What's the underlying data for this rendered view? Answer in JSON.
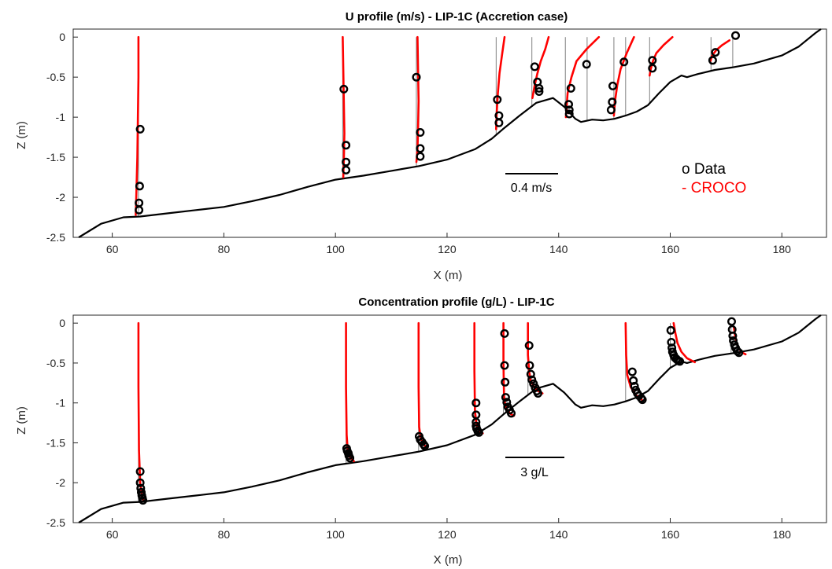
{
  "colors": {
    "data": "#000000",
    "model": "#ff0000",
    "bed": "#000000",
    "vertical_ref": "#808080",
    "axes": "#262626"
  },
  "legend": {
    "data_label": "o Data",
    "model_label": "- CROCO"
  },
  "chart_data": [
    {
      "type": "line",
      "title": "U profile (m/s) - LIP-1C (Accretion case)",
      "xlabel": "X (m)",
      "ylabel": "Z (m)",
      "xlim": [
        53,
        188
      ],
      "ylim": [
        -2.5,
        0.1
      ],
      "xticks": [
        60,
        80,
        100,
        120,
        140,
        160,
        180
      ],
      "yticks": [
        0,
        -0.5,
        -1,
        -1.5,
        -2,
        -2.5
      ],
      "ytick_labels": [
        "0",
        "-0.5",
        "-1",
        "-1.5",
        "-2",
        "-2.5"
      ],
      "grid": false,
      "scale_bar_label": "0.4 m/s",
      "scale_bar_value": 0.4,
      "bed_profile": {
        "x": [
          54,
          58,
          62,
          65,
          70,
          75,
          80,
          85,
          90,
          95,
          100,
          105,
          110,
          115,
          120,
          125,
          128,
          130,
          133,
          136,
          139,
          141,
          143,
          144,
          146,
          148,
          150,
          152,
          154,
          156,
          158,
          160,
          162,
          163,
          165,
          168,
          171,
          175,
          180,
          183,
          186,
          187
        ],
        "z": [
          -2.5,
          -2.33,
          -2.25,
          -2.24,
          -2.2,
          -2.16,
          -2.12,
          -2.05,
          -1.97,
          -1.87,
          -1.78,
          -1.73,
          -1.67,
          -1.61,
          -1.53,
          -1.4,
          -1.27,
          -1.15,
          -0.98,
          -0.82,
          -0.76,
          -0.87,
          -1.02,
          -1.06,
          -1.03,
          -1.04,
          -1.02,
          -0.98,
          -0.93,
          -0.85,
          -0.7,
          -0.56,
          -0.48,
          -0.5,
          -0.46,
          -0.41,
          -0.38,
          -0.33,
          -0.23,
          -0.12,
          0.05,
          0.1
        ]
      },
      "profiles": [
        {
          "x0": 64.7,
          "data_x": [
            65.0,
            64.9,
            64.8,
            64.8
          ],
          "data_z": [
            -1.15,
            -1.86,
            -2.07,
            -2.16
          ],
          "model_x": [
            64.7,
            64.7,
            64.6,
            64.5,
            64.3,
            64.2
          ],
          "model_z": [
            0.0,
            -0.5,
            -1.0,
            -1.5,
            -2.0,
            -2.22
          ]
        },
        {
          "x0": 101.3,
          "data_x": [
            101.5,
            101.9,
            101.9,
            101.9
          ],
          "data_z": [
            -0.65,
            -1.35,
            -1.56,
            -1.66
          ],
          "model_x": [
            101.3,
            101.4,
            101.5,
            101.6,
            101.5,
            101.4
          ],
          "model_z": [
            0.0,
            -0.4,
            -0.8,
            -1.2,
            -1.55,
            -1.75
          ]
        },
        {
          "x0": 114.5,
          "data_x": [
            114.5,
            115.2,
            115.2,
            115.2
          ],
          "data_z": [
            -0.5,
            -1.19,
            -1.39,
            -1.49
          ],
          "model_x": [
            114.7,
            114.8,
            114.9,
            114.8,
            114.7,
            114.5
          ],
          "model_z": [
            0.0,
            -0.4,
            -0.8,
            -1.15,
            -1.4,
            -1.56
          ]
        },
        {
          "x0": 128.8,
          "data_x": [
            129.0,
            129.3,
            129.3
          ],
          "data_z": [
            -0.78,
            -0.98,
            -1.07
          ],
          "model_x": [
            130.3,
            129.9,
            129.4,
            129.1,
            128.9,
            128.8
          ],
          "model_z": [
            0.0,
            -0.2,
            -0.45,
            -0.7,
            -0.95,
            -1.15
          ]
        },
        {
          "x0": 135.2,
          "data_x": [
            135.7,
            136.2,
            136.5,
            136.5
          ],
          "data_z": [
            -0.37,
            -0.56,
            -0.64,
            -0.68
          ],
          "model_x": [
            138.2,
            137.6,
            136.8,
            136.2,
            135.7,
            135.3
          ],
          "model_z": [
            0.0,
            -0.15,
            -0.3,
            -0.45,
            -0.6,
            -0.76
          ]
        },
        {
          "x0": 141.2,
          "data_x": [
            142.2,
            141.8,
            141.9,
            141.9
          ],
          "data_z": [
            -0.64,
            -0.84,
            -0.91,
            -0.96
          ],
          "model_x": [
            147.2,
            145.0,
            143.2,
            142.3,
            141.6,
            141.3
          ],
          "model_z": [
            0.0,
            -0.15,
            -0.3,
            -0.5,
            -0.7,
            -1.0
          ]
        },
        {
          "x0": 145.1,
          "data_x": [
            145.0
          ],
          "data_z": [
            -0.34
          ],
          "model_x": [],
          "model_z": []
        },
        {
          "x0": 149.9,
          "data_x": [
            149.7,
            149.6,
            149.4
          ],
          "data_z": [
            -0.61,
            -0.81,
            -0.91
          ],
          "model_x": [
            153.5,
            152.2,
            151.1,
            150.5,
            150.1,
            149.9
          ],
          "model_z": [
            0.0,
            -0.2,
            -0.4,
            -0.6,
            -0.8,
            -0.98
          ]
        },
        {
          "x0": 152.0,
          "data_x": [
            151.7
          ],
          "data_z": [
            -0.31
          ],
          "model_x": [],
          "model_z": []
        },
        {
          "x0": 156.3,
          "data_x": [
            156.8,
            156.8
          ],
          "data_z": [
            -0.29,
            -0.39
          ],
          "model_x": [
            160.4,
            158.8,
            157.5,
            156.9,
            156.5,
            156.3
          ],
          "model_z": [
            0.0,
            -0.1,
            -0.2,
            -0.3,
            -0.4,
            -0.48
          ]
        },
        {
          "x0": 167.3,
          "data_x": [
            168.1,
            167.6
          ],
          "data_z": [
            -0.19,
            -0.29
          ],
          "model_x": [
            170.6,
            169.3,
            168.3,
            167.5,
            167.2
          ],
          "model_z": [
            -0.04,
            -0.1,
            -0.16,
            -0.23,
            -0.3
          ]
        },
        {
          "x0": 171.2,
          "data_x": [
            171.7
          ],
          "data_z": [
            0.02
          ],
          "model_x": [],
          "model_z": []
        }
      ]
    },
    {
      "type": "line",
      "title": "Concentration profile (g/L) - LIP-1C",
      "xlabel": "X (m)",
      "ylabel": "Z (m)",
      "xlim": [
        53,
        188
      ],
      "ylim": [
        -2.5,
        0.1
      ],
      "xticks": [
        60,
        80,
        100,
        120,
        140,
        160,
        180
      ],
      "yticks": [
        0,
        -0.5,
        -1,
        -1.5,
        -2,
        -2.5
      ],
      "ytick_labels": [
        "0",
        "-0.5",
        "-1",
        "-1.5",
        "-2",
        "-2.5"
      ],
      "grid": false,
      "scale_bar_label": "3 g/L",
      "scale_bar_value": 3,
      "profiles": [
        {
          "x0": 64.7,
          "data_x": [
            65.0,
            65.0,
            65.1,
            65.2,
            65.3,
            65.4,
            65.5
          ],
          "data_z": [
            -1.86,
            -2.0,
            -2.07,
            -2.12,
            -2.16,
            -2.19,
            -2.22
          ],
          "model_x": [
            64.7,
            64.7,
            64.8,
            65.0,
            65.3,
            65.6
          ],
          "model_z": [
            0.0,
            -0.8,
            -1.6,
            -2.0,
            -2.15,
            -2.22
          ]
        },
        {
          "x0": 101.9,
          "data_x": [
            102.0,
            102.1,
            102.3,
            102.4,
            102.6
          ],
          "data_z": [
            -1.57,
            -1.6,
            -1.63,
            -1.66,
            -1.69
          ],
          "model_x": [
            101.9,
            101.9,
            102.0,
            102.2,
            102.6,
            103.3
          ],
          "model_z": [
            0.0,
            -0.8,
            -1.4,
            -1.6,
            -1.68,
            -1.73
          ]
        },
        {
          "x0": 114.9,
          "data_x": [
            115.0,
            115.2,
            115.5,
            115.8,
            116.0
          ],
          "data_z": [
            -1.42,
            -1.46,
            -1.49,
            -1.52,
            -1.54
          ],
          "model_x": [
            114.9,
            114.9,
            115.0,
            115.3,
            115.8,
            116.4
          ],
          "model_z": [
            0.0,
            -0.8,
            -1.3,
            -1.45,
            -1.52,
            -1.56
          ]
        },
        {
          "x0": 124.9,
          "data_x": [
            125.2,
            125.2,
            125.2,
            125.2,
            125.3,
            125.5,
            125.7
          ],
          "data_z": [
            -1.0,
            -1.15,
            -1.24,
            -1.29,
            -1.32,
            -1.35,
            -1.37
          ],
          "model_x": [
            124.9,
            124.9,
            125.0,
            125.3,
            125.8,
            126.4
          ],
          "model_z": [
            0.0,
            -0.6,
            -1.1,
            -1.28,
            -1.35,
            -1.38
          ]
        },
        {
          "x0": 130.1,
          "data_x": [
            130.3,
            130.3,
            130.4,
            130.5,
            130.7,
            130.9,
            131.2,
            131.5
          ],
          "data_z": [
            -0.13,
            -0.53,
            -0.74,
            -0.93,
            -0.99,
            -1.05,
            -1.09,
            -1.13
          ],
          "model_x": [
            130.1,
            130.1,
            130.2,
            130.4,
            130.8,
            131.4,
            132.0
          ],
          "model_z": [
            0.0,
            -0.5,
            -0.9,
            -1.02,
            -1.09,
            -1.14,
            -1.16
          ]
        },
        {
          "x0": 134.5,
          "data_x": [
            134.7,
            134.8,
            135.0,
            135.2,
            135.5,
            135.8,
            136.1,
            136.3
          ],
          "data_z": [
            -0.28,
            -0.53,
            -0.64,
            -0.71,
            -0.76,
            -0.81,
            -0.85,
            -0.88
          ],
          "model_x": [
            134.5,
            134.5,
            134.7,
            135.0,
            135.6,
            136.3,
            137.1
          ],
          "model_z": [
            0.0,
            -0.4,
            -0.6,
            -0.72,
            -0.8,
            -0.85,
            -0.88
          ]
        },
        {
          "x0": 152.0,
          "data_x": [
            153.2,
            153.4,
            153.6,
            153.8,
            154.1,
            154.4,
            154.8,
            155.0
          ],
          "data_z": [
            -0.61,
            -0.72,
            -0.79,
            -0.84,
            -0.88,
            -0.91,
            -0.94,
            -0.96
          ],
          "model_x": [
            152.0,
            152.1,
            152.3,
            152.9,
            153.8,
            154.9
          ],
          "model_z": [
            0.0,
            -0.4,
            -0.65,
            -0.8,
            -0.9,
            -0.96
          ]
        },
        {
          "x0": 160.0,
          "data_x": [
            160.1,
            160.2,
            160.3,
            160.4,
            160.6,
            160.8,
            161.1,
            161.4,
            161.7
          ],
          "data_z": [
            -0.09,
            -0.24,
            -0.31,
            -0.36,
            -0.4,
            -0.43,
            -0.45,
            -0.47,
            -0.48
          ],
          "model_x": [
            160.6,
            160.9,
            161.3,
            162.0,
            163.0,
            164.4
          ],
          "model_z": [
            0.0,
            -0.12,
            -0.25,
            -0.36,
            -0.44,
            -0.49
          ]
        },
        {
          "x0": 170.9,
          "data_x": [
            171.0,
            171.1,
            171.2,
            171.3,
            171.5,
            171.7,
            172.0,
            172.3
          ],
          "data_z": [
            0.02,
            -0.08,
            -0.16,
            -0.22,
            -0.27,
            -0.31,
            -0.35,
            -0.37
          ],
          "model_x": [
            171.4,
            171.6,
            171.9,
            172.3,
            172.9,
            173.5
          ],
          "model_z": [
            -0.05,
            -0.15,
            -0.25,
            -0.32,
            -0.37,
            -0.39
          ]
        }
      ]
    }
  ]
}
